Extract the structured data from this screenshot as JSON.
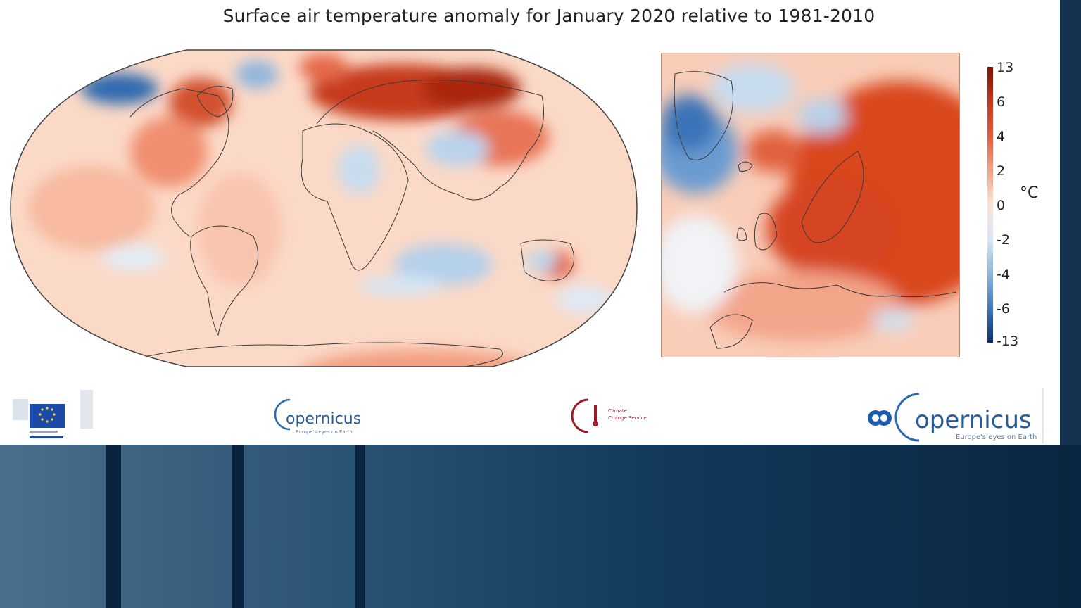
{
  "title": "Surface air temperature anomaly for January 2020 relative to 1981-2010",
  "colorbar": {
    "unit": "°C",
    "ticks": [
      "13",
      "6",
      "4",
      "2",
      "0",
      "-2",
      "-4",
      "-6",
      "-13"
    ],
    "colors": [
      "#7f1205",
      "#c8361a",
      "#e45a3a",
      "#f4a486",
      "#fbe3d9",
      "#d8e7f4",
      "#8eb6dc",
      "#3d78b8",
      "#0d2f6e"
    ]
  },
  "maps": [
    {
      "name": "global",
      "projection": "robinson",
      "dominant": "warm anomaly",
      "cold_regions": [
        "Alaska",
        "West Greenland",
        "Middle East",
        "Southern Ocean"
      ]
    },
    {
      "name": "europe",
      "dominant": "warm anomaly",
      "cold_regions": [
        "Greenland",
        "Norwegian Sea",
        "Turkey"
      ]
    }
  ],
  "logos": {
    "eu": {
      "name": "European Commission",
      "icon": "eu-flag-icon"
    },
    "copernicus_small": {
      "text": "opernicus",
      "tagline": "Europe's eyes on Earth"
    },
    "c3s": {
      "text1": "Climate",
      "text2": "Change Service",
      "icon": "c3s-icon"
    },
    "copernicus_big": {
      "text": "opernicus",
      "tagline": "Europe's eyes on Earth"
    }
  }
}
